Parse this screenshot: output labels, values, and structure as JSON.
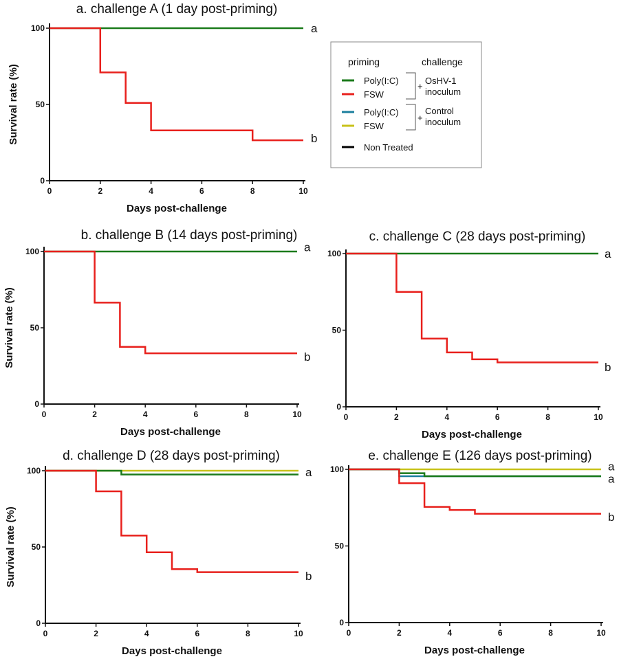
{
  "colors": {
    "poly_ic_oshv": "#1a7a1a",
    "fsw_oshv": "#e8201c",
    "poly_ic_control": "#1b7f9e",
    "fsw_control": "#c8c21a",
    "non_treated": "#000000"
  },
  "legend": {
    "header_priming": "priming",
    "header_challenge": "challenge",
    "items": [
      {
        "label": "Poly(I:C)",
        "color": "#1a7a1a"
      },
      {
        "label": "FSW",
        "color": "#e8201c"
      },
      {
        "label": "Poly(I:C)",
        "color": "#1b7f9e"
      },
      {
        "label": "FSW",
        "color": "#c8c21a"
      },
      {
        "label": "Non Treated",
        "color": "#000000"
      }
    ],
    "groups": [
      {
        "plus": "+",
        "line1": "OsHV-1",
        "line2": "inoculum"
      },
      {
        "plus": "+",
        "line1": "Control",
        "line2": "inoculum"
      }
    ]
  },
  "chart_data": [
    {
      "type": "line",
      "title": "a. challenge A (1 day post-priming)",
      "xlabel": "Days post-challenge",
      "ylabel": "Survival rate (%)",
      "xlim": [
        0,
        10
      ],
      "ylim": [
        0,
        100
      ],
      "xticks": [
        "0",
        "2",
        "4",
        "6",
        "8",
        "10"
      ],
      "yticks": [
        "0",
        "50",
        "100"
      ],
      "series": [
        {
          "name": "Poly(I:C) + OsHV-1",
          "color": "#1a7a1a",
          "x": [
            0,
            10
          ],
          "y": [
            100,
            100
          ]
        },
        {
          "name": "FSW + OsHV-1",
          "color": "#e8201c",
          "x": [
            0,
            2,
            3,
            4,
            8,
            10
          ],
          "y": [
            100,
            71,
            51,
            33,
            26.5,
            26.5
          ]
        }
      ],
      "annotations": [
        {
          "text": "a",
          "y": 100
        },
        {
          "text": "b",
          "y": 28
        }
      ]
    },
    {
      "type": "line",
      "title": "b. challenge B (14 days post-priming)",
      "xlabel": "Days post-challenge",
      "ylabel": "Survival rate (%)",
      "xlim": [
        0,
        10
      ],
      "ylim": [
        0,
        100
      ],
      "xticks": [
        "0",
        "2",
        "4",
        "6",
        "8",
        "10"
      ],
      "yticks": [
        "0",
        "50",
        "100"
      ],
      "series": [
        {
          "name": "Poly(I:C) + OsHV-1",
          "color": "#1a7a1a",
          "x": [
            0,
            10
          ],
          "y": [
            100,
            100
          ]
        },
        {
          "name": "FSW + OsHV-1",
          "color": "#e8201c",
          "x": [
            0,
            2,
            3,
            4,
            10
          ],
          "y": [
            100,
            66.5,
            37.5,
            33.3,
            33.3
          ]
        }
      ],
      "annotations": [
        {
          "text": "a",
          "y": 103
        },
        {
          "text": "b",
          "y": 31
        }
      ]
    },
    {
      "type": "line",
      "title": "c. challenge C (28 days post-priming)",
      "xlabel": "Days post-challenge",
      "ylabel": "",
      "xlim": [
        0,
        10
      ],
      "ylim": [
        0,
        100
      ],
      "xticks": [
        "0",
        "2",
        "4",
        "6",
        "8",
        "10"
      ],
      "yticks": [
        "0",
        "50",
        "100"
      ],
      "series": [
        {
          "name": "Poly(I:C) + OsHV-1",
          "color": "#1a7a1a",
          "x": [
            0,
            10
          ],
          "y": [
            100,
            100
          ]
        },
        {
          "name": "FSW + OsHV-1",
          "color": "#e8201c",
          "x": [
            0,
            2,
            3,
            4,
            5,
            6,
            10
          ],
          "y": [
            100,
            75,
            44.5,
            35.5,
            31,
            29,
            29
          ]
        }
      ],
      "annotations": [
        {
          "text": "a",
          "y": 100
        },
        {
          "text": "b",
          "y": 26
        }
      ]
    },
    {
      "type": "line",
      "title": "d. challenge D (28 days post-priming)",
      "xlabel": "Days post-challenge",
      "ylabel": "Survival rate (%)",
      "xlim": [
        0,
        10
      ],
      "ylim": [
        0,
        100
      ],
      "xticks": [
        "0",
        "2",
        "4",
        "6",
        "8",
        "10"
      ],
      "yticks": [
        "0",
        "50",
        "100"
      ],
      "series": [
        {
          "name": "FSW + Control",
          "color": "#c8c21a",
          "x": [
            0,
            10
          ],
          "y": [
            100,
            100
          ]
        },
        {
          "name": "Poly(I:C) + OsHV-1",
          "color": "#1a7a1a",
          "x": [
            0,
            3,
            10
          ],
          "y": [
            100,
            97.5,
            97.5
          ]
        },
        {
          "name": "FSW + OsHV-1",
          "color": "#e8201c",
          "x": [
            0,
            2,
            3,
            4,
            5,
            6,
            10
          ],
          "y": [
            100,
            86.5,
            57.5,
            46.5,
            35.5,
            33.5,
            33.5
          ]
        }
      ],
      "annotations": [
        {
          "text": "a",
          "y": 99
        },
        {
          "text": "b",
          "y": 31
        }
      ]
    },
    {
      "type": "line",
      "title": "e. challenge E (126 days post-priming)",
      "xlabel": "Days post-challenge",
      "ylabel": "",
      "xlim": [
        0,
        10
      ],
      "ylim": [
        0,
        100
      ],
      "xticks": [
        "0",
        "2",
        "4",
        "6",
        "8",
        "10"
      ],
      "yticks": [
        "0",
        "50",
        "100"
      ],
      "series": [
        {
          "name": "FSW + Control",
          "color": "#c8c21a",
          "x": [
            0,
            10
          ],
          "y": [
            100,
            100
          ]
        },
        {
          "name": "Poly(I:C) + Control",
          "color": "#1b7f9e",
          "x": [
            0,
            2,
            10
          ],
          "y": [
            100,
            95.5,
            95.5
          ]
        },
        {
          "name": "Poly(I:C) + OsHV-1",
          "color": "#1a7a1a",
          "x": [
            0,
            2,
            3,
            10
          ],
          "y": [
            100,
            97.5,
            95.5,
            95.5
          ]
        },
        {
          "name": "FSW + OsHV-1",
          "color": "#e8201c",
          "x": [
            0,
            2,
            3,
            4,
            5,
            10
          ],
          "y": [
            100,
            91,
            75.5,
            73.5,
            71,
            71
          ]
        }
      ],
      "annotations": [
        {
          "text": "a",
          "y": 102
        },
        {
          "text": "a",
          "y": 94
        },
        {
          "text": "b",
          "y": 69
        }
      ]
    }
  ]
}
